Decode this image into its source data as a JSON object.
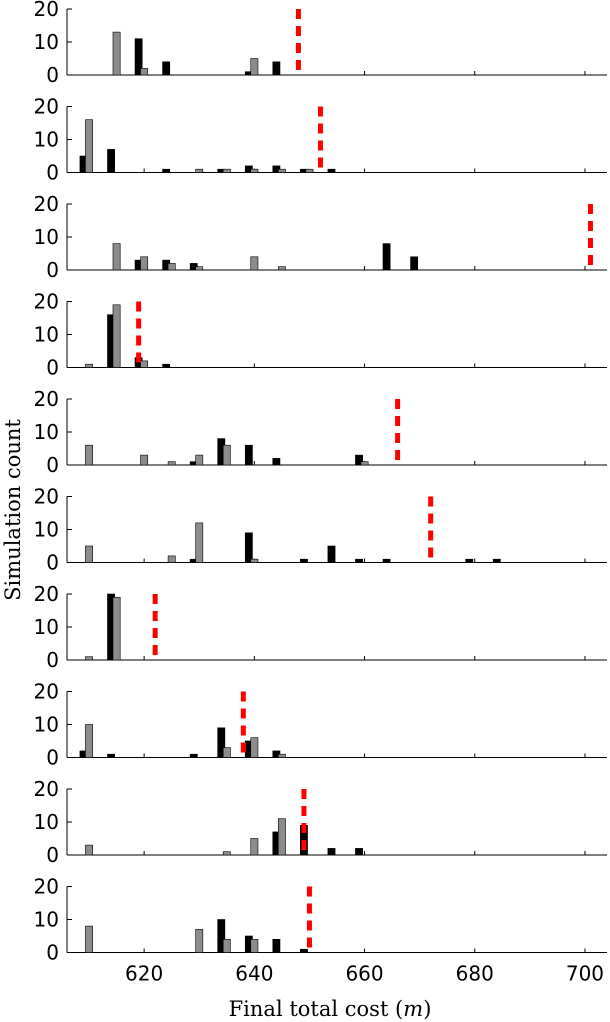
{
  "figure": {
    "ylabel": "Simulation count",
    "xlabel_main": "Final total cost (",
    "xlabel_var": "m",
    "xlabel_close": ")"
  },
  "chart_data": {
    "type": "bar",
    "xlim": [
      606,
      704
    ],
    "ylim": [
      0,
      20
    ],
    "xticks": [
      620,
      640,
      660,
      680,
      700
    ],
    "yticks": [
      0,
      10,
      20
    ],
    "colors": {
      "series_a": "#000000",
      "series_b": "#8c8c8c",
      "reference": "#ff0000"
    },
    "reference_style": "dashed vertical line",
    "panels": [
      {
        "series_a": [
          [
            619,
            11
          ],
          [
            624,
            4
          ],
          [
            639,
            1
          ],
          [
            644,
            4
          ],
          [
            648,
            0
          ]
        ],
        "series_b": [
          [
            615,
            13
          ],
          [
            620,
            2
          ],
          [
            640,
            5
          ]
        ],
        "reference_x": 648
      },
      {
        "series_a": [
          [
            609,
            5
          ],
          [
            614,
            7
          ],
          [
            624,
            1
          ],
          [
            634,
            1
          ],
          [
            639,
            2
          ],
          [
            644,
            2
          ],
          [
            649,
            1
          ],
          [
            654,
            1
          ]
        ],
        "series_b": [
          [
            610,
            16
          ],
          [
            630,
            1
          ],
          [
            635,
            1
          ],
          [
            640,
            1
          ],
          [
            645,
            1
          ],
          [
            650,
            1
          ]
        ],
        "reference_x": 652
      },
      {
        "series_a": [
          [
            619,
            3
          ],
          [
            624,
            3
          ],
          [
            629,
            2
          ],
          [
            664,
            8
          ],
          [
            669,
            4
          ]
        ],
        "series_b": [
          [
            615,
            8
          ],
          [
            620,
            4
          ],
          [
            625,
            2
          ],
          [
            630,
            1
          ],
          [
            640,
            4
          ],
          [
            645,
            1
          ]
        ],
        "reference_x": 701
      },
      {
        "series_a": [
          [
            614,
            16
          ],
          [
            619,
            3
          ],
          [
            624,
            1
          ]
        ],
        "series_b": [
          [
            610,
            1
          ],
          [
            615,
            19
          ],
          [
            620,
            2
          ]
        ],
        "reference_x": 619
      },
      {
        "series_a": [
          [
            629,
            1
          ],
          [
            634,
            8
          ],
          [
            639,
            6
          ],
          [
            644,
            2
          ],
          [
            659,
            3
          ]
        ],
        "series_b": [
          [
            610,
            6
          ],
          [
            620,
            3
          ],
          [
            625,
            1
          ],
          [
            630,
            3
          ],
          [
            635,
            6
          ],
          [
            660,
            1
          ]
        ],
        "reference_x": 666
      },
      {
        "series_a": [
          [
            629,
            1
          ],
          [
            639,
            9
          ],
          [
            649,
            1
          ],
          [
            654,
            5
          ],
          [
            659,
            1
          ],
          [
            664,
            1
          ],
          [
            679,
            1
          ],
          [
            684,
            1
          ]
        ],
        "series_b": [
          [
            610,
            5
          ],
          [
            625,
            2
          ],
          [
            630,
            12
          ],
          [
            640,
            1
          ]
        ],
        "reference_x": 672
      },
      {
        "series_a": [
          [
            614,
            20
          ]
        ],
        "series_b": [
          [
            610,
            1
          ],
          [
            615,
            19
          ]
        ],
        "reference_x": 622
      },
      {
        "series_a": [
          [
            609,
            2
          ],
          [
            614,
            1
          ],
          [
            629,
            1
          ],
          [
            634,
            9
          ],
          [
            639,
            5
          ],
          [
            644,
            2
          ]
        ],
        "series_b": [
          [
            610,
            10
          ],
          [
            635,
            3
          ],
          [
            640,
            6
          ],
          [
            645,
            1
          ]
        ],
        "reference_x": 638
      },
      {
        "series_a": [
          [
            644,
            7
          ],
          [
            649,
            9
          ],
          [
            654,
            2
          ],
          [
            659,
            2
          ]
        ],
        "series_b": [
          [
            610,
            3
          ],
          [
            635,
            1
          ],
          [
            640,
            5
          ],
          [
            645,
            11
          ]
        ],
        "reference_x": 649
      },
      {
        "series_a": [
          [
            634,
            10
          ],
          [
            639,
            5
          ],
          [
            644,
            4
          ],
          [
            649,
            1
          ]
        ],
        "series_b": [
          [
            610,
            8
          ],
          [
            630,
            7
          ],
          [
            635,
            4
          ],
          [
            640,
            4
          ]
        ],
        "reference_x": 650
      }
    ]
  }
}
